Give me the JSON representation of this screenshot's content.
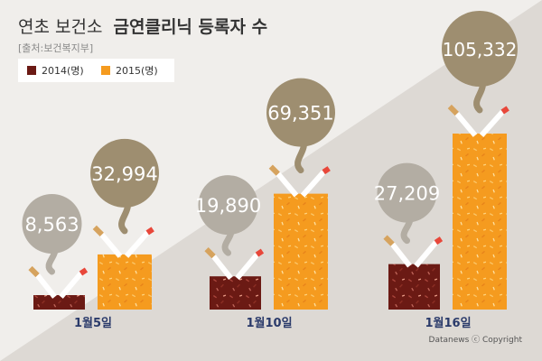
{
  "header": {
    "title_light": "연초 보건소",
    "title_bold": "금연클리닉 등록자 수",
    "source": "[출처:보건복지부]"
  },
  "footer": {
    "credit": "Datanews ⓒ Copyright"
  },
  "colors": {
    "bg_light": "#f0eeeb",
    "bg_diag": "#ddd9d4",
    "series_2014": "#6b1a14",
    "series_2015": "#f59b1f",
    "bubble_2014": "#b3ada3",
    "bubble_2015": "#9e8e70",
    "axis_label": "#2a3a6a"
  },
  "chart_data": {
    "type": "bar",
    "title": "금연클리닉 등록자 수",
    "categories": [
      "1월5일",
      "1월10일",
      "1월16일"
    ],
    "series": [
      {
        "name": "2014(명)",
        "values": [
          8563,
          19890,
          27209
        ],
        "labels": [
          "8,563",
          "19,890",
          "27,209"
        ]
      },
      {
        "name": "2015(명)",
        "values": [
          32994,
          69351,
          105332
        ],
        "labels": [
          "32,994",
          "69,351",
          "105,332"
        ]
      }
    ],
    "legend_position": "top-left",
    "grid": false
  }
}
